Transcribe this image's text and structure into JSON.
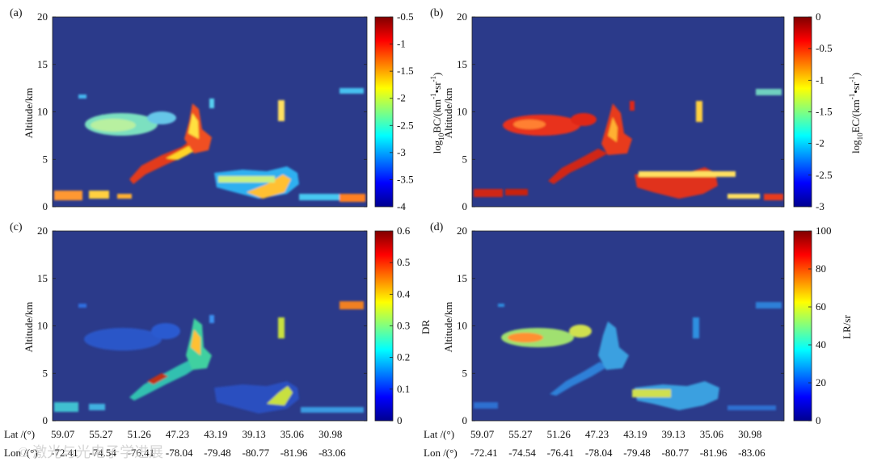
{
  "figure": {
    "watermark": "© 激光与光电子学进展"
  },
  "chart_data": [
    {
      "panel": "(a)",
      "type": "heatmap",
      "title": "",
      "xlabel": "",
      "ylabel": "Altitude/km",
      "ylim": [
        0,
        20
      ],
      "yticks": [
        "0",
        "5",
        "10",
        "15",
        "20"
      ],
      "colorbar": {
        "label": "log10BC/(km-1•sr-1)",
        "label_parts": {
          "pre": "log",
          "sub": "10",
          "mid": "BC/(km",
          "sup1": "-1",
          "bullet": "•",
          "mid2": "sr",
          "sup2": "-1",
          "post": ")"
        },
        "range": [
          -4,
          -0.5
        ],
        "ticks": [
          "-0.5",
          "-1",
          "-1.5",
          "-2",
          "-2.5",
          "-3",
          "-3.5",
          "-4"
        ]
      }
    },
    {
      "panel": "(b)",
      "type": "heatmap",
      "title": "",
      "xlabel": "",
      "ylabel": "Altitude/km",
      "ylim": [
        0,
        20
      ],
      "yticks": [
        "0",
        "5",
        "10",
        "15",
        "20"
      ],
      "colorbar": {
        "label": "log10EC/(km-1•sr-1)",
        "label_parts": {
          "pre": "log",
          "sub": "10",
          "mid": "EC/(km",
          "sup1": "-1",
          "bullet": "•",
          "mid2": "sr",
          "sup2": "-1",
          "post": ")"
        },
        "range": [
          -3,
          0
        ],
        "ticks": [
          "0",
          "-0.5",
          "-1",
          "-1.5",
          "-2",
          "-2.5",
          "-3"
        ]
      }
    },
    {
      "panel": "(c)",
      "type": "heatmap",
      "title": "",
      "xlabel": "",
      "ylabel": "Altitude/km",
      "ylim": [
        0,
        20
      ],
      "yticks": [
        "0",
        "5",
        "10",
        "15",
        "20"
      ],
      "x_rows": {
        "lat_label": "Lat /(°)",
        "lon_label": "Lon /(°)",
        "lat": [
          "59.07",
          "55.27",
          "51.26",
          "47.23",
          "43.19",
          "39.13",
          "35.06",
          "30.98"
        ],
        "lon": [
          "-72.41",
          "-74.54",
          "-76.41",
          "-78.04",
          "-79.48",
          "-80.77",
          "-81.96",
          "-83.06"
        ]
      },
      "colorbar": {
        "label": "DR",
        "range": [
          0,
          0.6
        ],
        "ticks": [
          "0.6",
          "0.5",
          "0.4",
          "0.3",
          "0.2",
          "0.1",
          "0"
        ]
      }
    },
    {
      "panel": "(d)",
      "type": "heatmap",
      "title": "",
      "xlabel": "",
      "ylabel": "Altitude/km",
      "ylim": [
        0,
        20
      ],
      "yticks": [
        "0",
        "5",
        "10",
        "15",
        "20"
      ],
      "x_rows": {
        "lat_label": "Lat /(°)",
        "lon_label": "Lon /(°)",
        "lat": [
          "59.07",
          "55.27",
          "51.26",
          "47.23",
          "43.19",
          "39.13",
          "35.06",
          "30.98"
        ],
        "lon": [
          "-72.41",
          "-74.54",
          "-76.41",
          "-78.04",
          "-79.48",
          "-80.77",
          "-81.96",
          "-83.06"
        ]
      },
      "colorbar": {
        "label": "LR/sr",
        "range": [
          0,
          100
        ],
        "ticks": [
          "100",
          "80",
          "60",
          "40",
          "20",
          "0"
        ]
      }
    }
  ]
}
